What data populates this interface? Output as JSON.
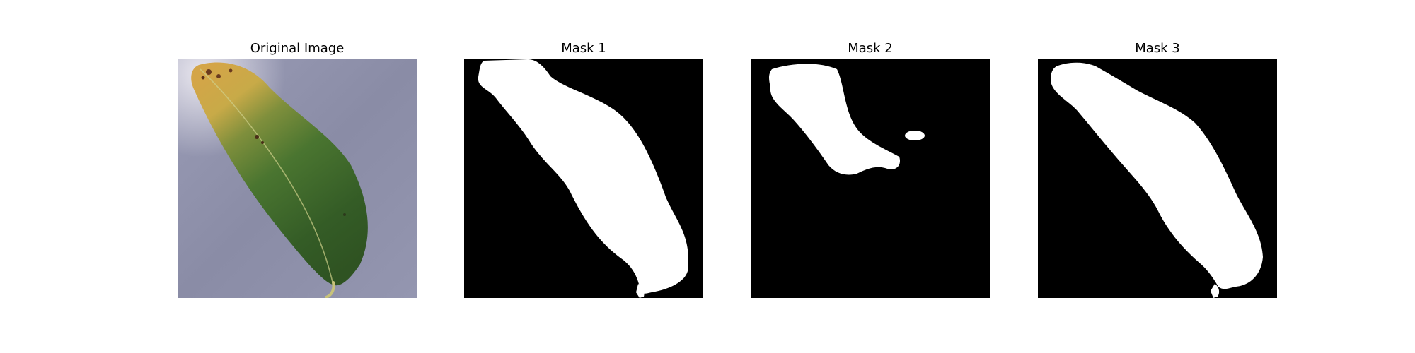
{
  "figure": {
    "panels": [
      {
        "title": "Original Image",
        "kind": "photo",
        "subject": "leaf"
      },
      {
        "title": "Mask 1",
        "kind": "mask"
      },
      {
        "title": "Mask 2",
        "kind": "mask"
      },
      {
        "title": "Mask 3",
        "kind": "mask"
      }
    ],
    "colors": {
      "mask_background": "#000000",
      "mask_foreground": "#ffffff",
      "photo_background": "#8a8ca6",
      "leaf_green": "#3f6a2a",
      "leaf_yellow": "#c8a23c"
    }
  }
}
